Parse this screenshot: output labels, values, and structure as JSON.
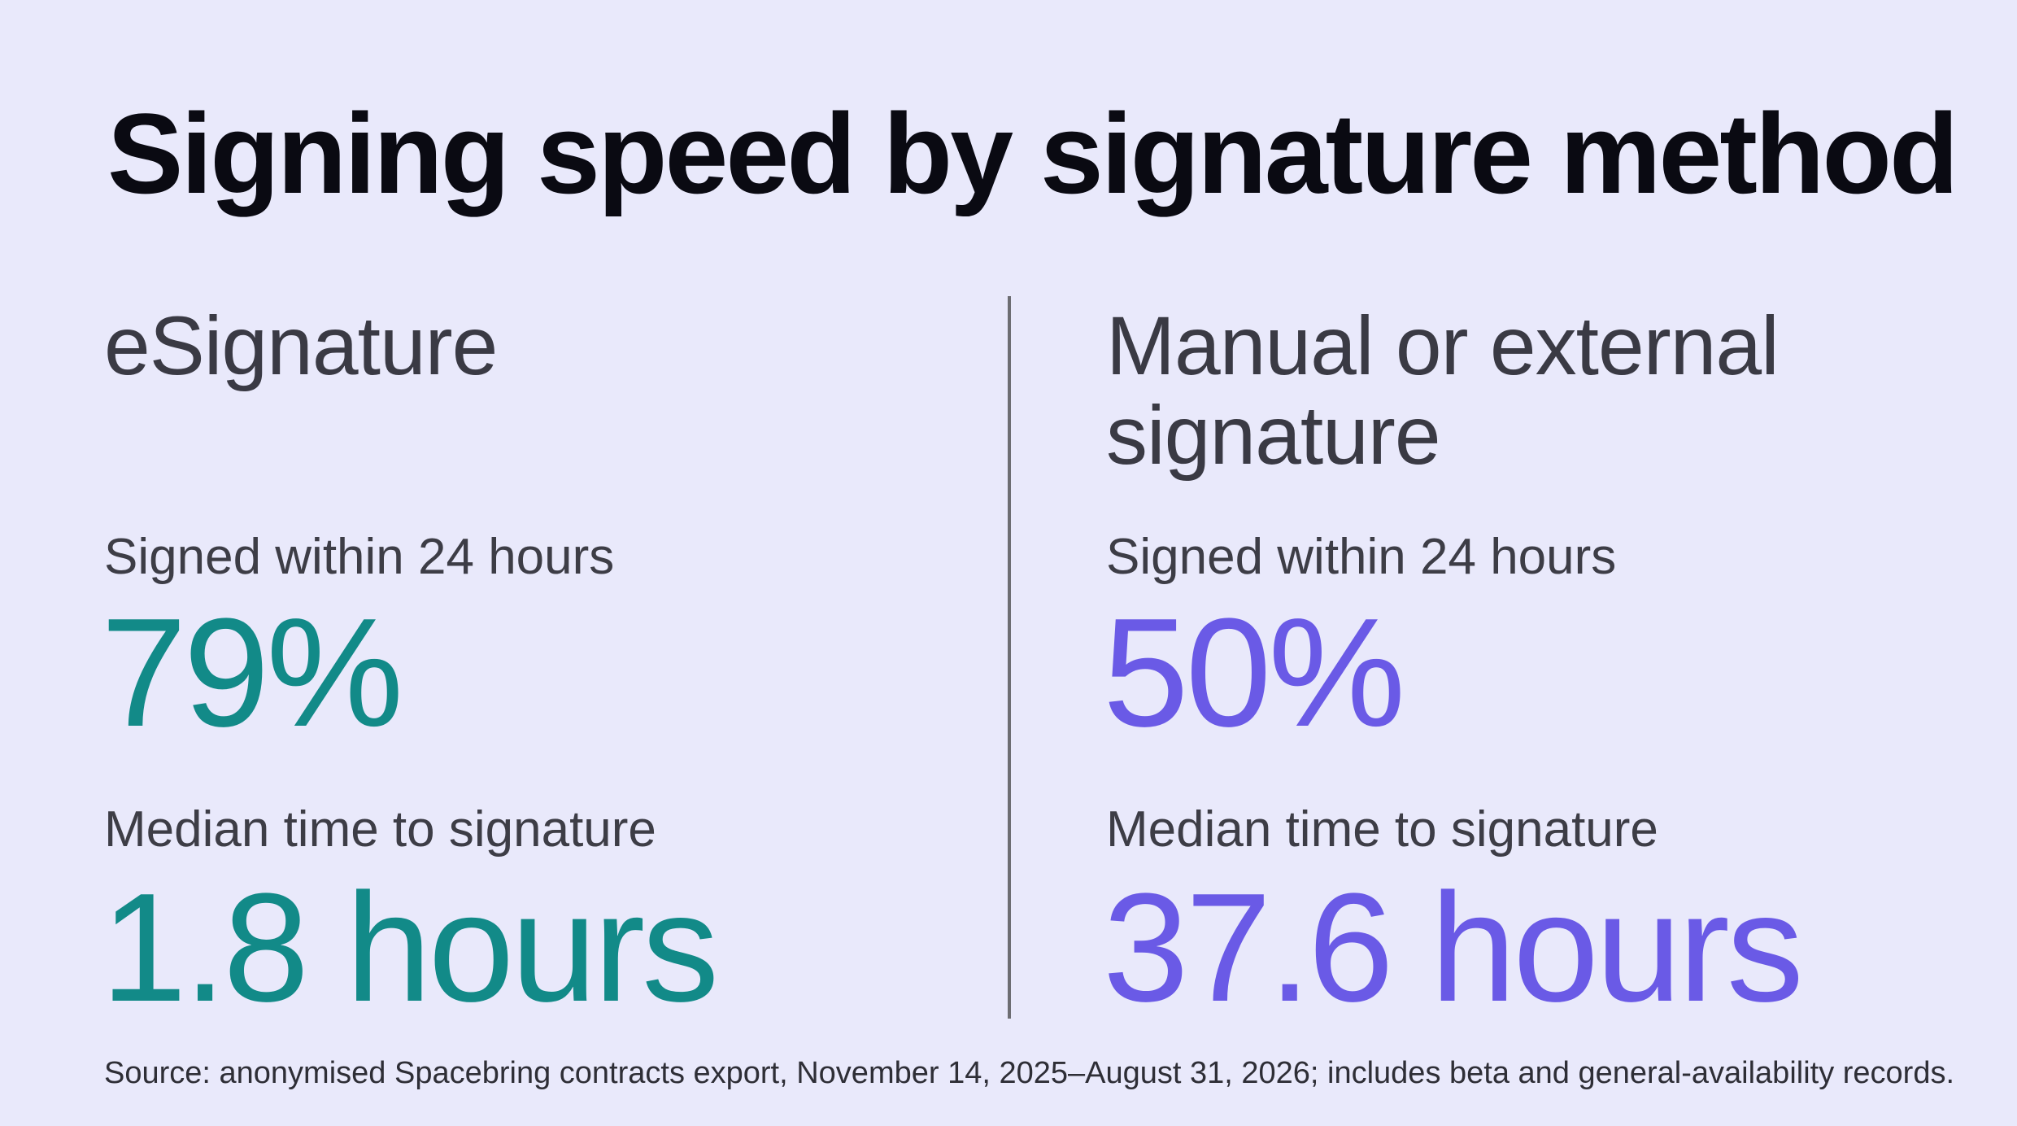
{
  "title": "Signing speed by signature method",
  "columns": [
    {
      "method": "eSignature",
      "metrics": [
        {
          "label": "Signed within 24 hours",
          "value": "79%"
        },
        {
          "label": "Median time to signature",
          "value": "1.8 hours"
        }
      ],
      "accent_color": "#128a88"
    },
    {
      "method": "Manual or external signature",
      "metrics": [
        {
          "label": "Signed within 24 hours",
          "value": "50%"
        },
        {
          "label": "Median time to signature",
          "value": "37.6 hours"
        }
      ],
      "accent_color": "#6a5ae6"
    }
  ],
  "source": "Source: anonymised Spacebring contracts export, November 14, 2025–August 31, 2026; includes beta and general-availability records.",
  "colors": {
    "background": "#e9e9fb",
    "title": "#0a0a12",
    "text": "#3a3a44",
    "divider": "#6d6d72"
  }
}
